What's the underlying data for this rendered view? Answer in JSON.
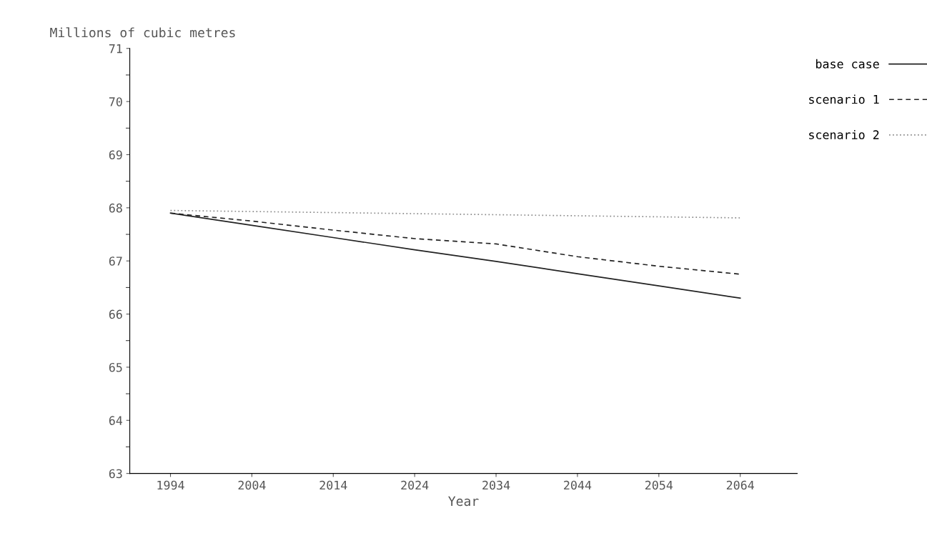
{
  "chart_data": {
    "type": "line",
    "ylabel": "Millions of cubic metres",
    "xlabel": "Year",
    "x": [
      1994,
      2004,
      2014,
      2024,
      2034,
      2044,
      2054,
      2064
    ],
    "series": [
      {
        "name": "base case",
        "color": "#222222",
        "line_style": "solid",
        "values": [
          67.9,
          67.67,
          67.44,
          67.21,
          66.99,
          66.76,
          66.53,
          66.3
        ]
      },
      {
        "name": "scenario 1",
        "color": "#222222",
        "line_style": "dashed",
        "values": [
          67.9,
          67.75,
          67.58,
          67.42,
          67.32,
          67.08,
          66.9,
          66.75
        ]
      },
      {
        "name": "scenario 2",
        "color": "#888888",
        "line_style": "dotted",
        "values": [
          67.95,
          67.93,
          67.91,
          67.89,
          67.87,
          67.85,
          67.83,
          67.81
        ]
      }
    ],
    "xlim": [
      1989,
      2071
    ],
    "xticks": [
      1994,
      2004,
      2014,
      2024,
      2034,
      2044,
      2054,
      2064
    ],
    "ylim": [
      63,
      71
    ],
    "yticks": [
      63,
      64,
      65,
      66,
      67,
      68,
      69,
      70,
      71
    ],
    "grid": false,
    "legend": "top right",
    "marker": "none"
  }
}
